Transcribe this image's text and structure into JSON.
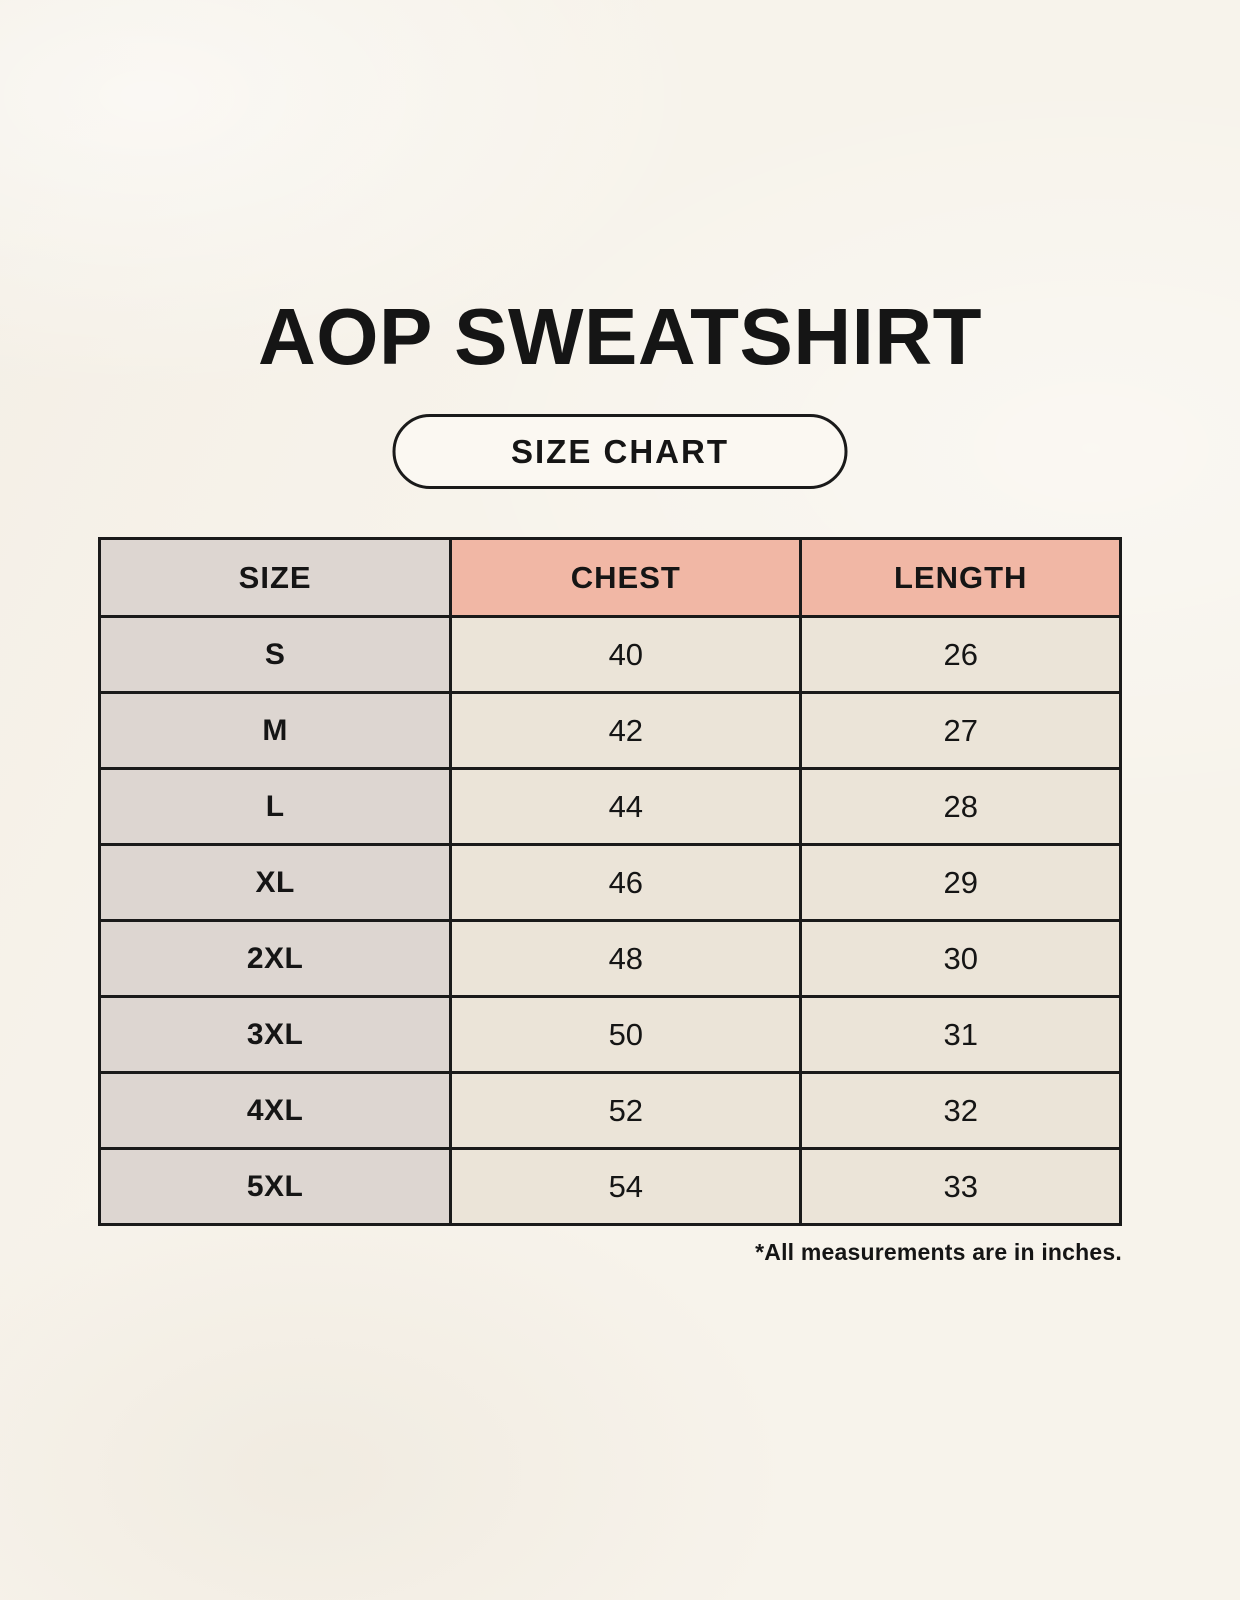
{
  "title": "AOP SWEATSHIRT",
  "badge_label": "SIZE CHART",
  "footnote": "*All measurements are in inches.",
  "colors": {
    "background": "#f7f3eb",
    "header_accent": "#f1b7a5",
    "size_column": "#ddd6d1",
    "cell": "#ebe4d8",
    "border": "#1a1a1a",
    "text": "#151515"
  },
  "size_table": {
    "columns": [
      "SIZE",
      "CHEST",
      "LENGTH"
    ],
    "rows": [
      {
        "size": "S",
        "chest": "40",
        "length": "26"
      },
      {
        "size": "M",
        "chest": "42",
        "length": "27"
      },
      {
        "size": "L",
        "chest": "44",
        "length": "28"
      },
      {
        "size": "XL",
        "chest": "46",
        "length": "29"
      },
      {
        "size": "2XL",
        "chest": "48",
        "length": "30"
      },
      {
        "size": "3XL",
        "chest": "50",
        "length": "31"
      },
      {
        "size": "4XL",
        "chest": "52",
        "length": "32"
      },
      {
        "size": "5XL",
        "chest": "54",
        "length": "33"
      }
    ]
  }
}
